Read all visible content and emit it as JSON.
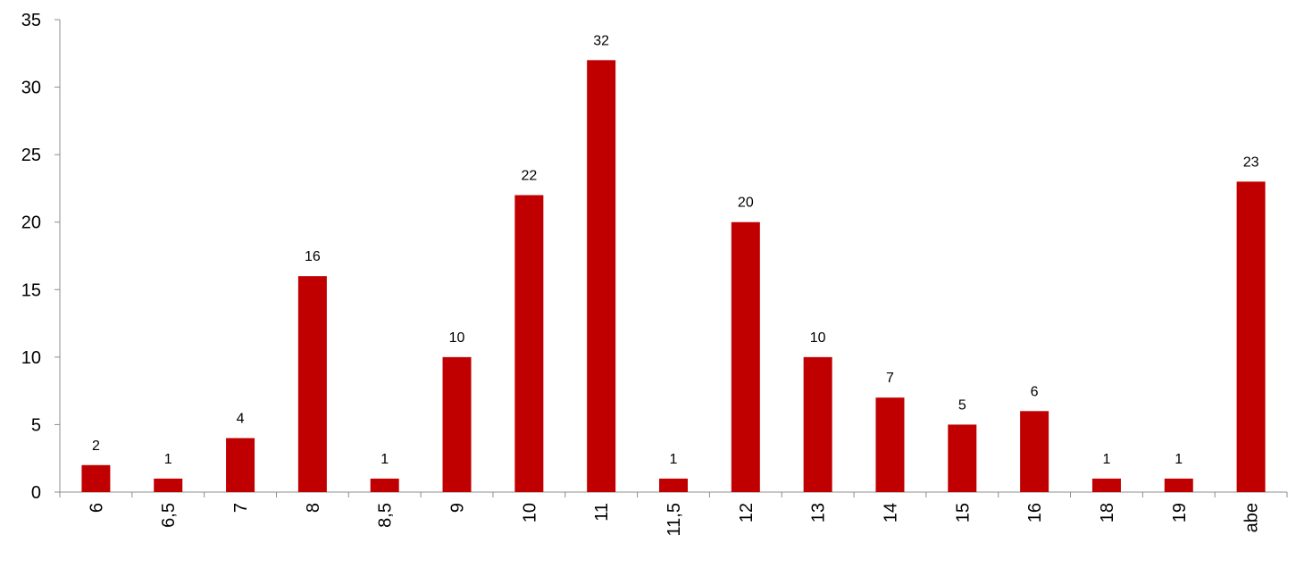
{
  "chart_data": {
    "type": "bar",
    "title": "",
    "xlabel": "",
    "ylabel": "",
    "categories": [
      "6",
      "6,5",
      "7",
      "8",
      "8,5",
      "9",
      "10",
      "11",
      "11,5",
      "12",
      "13",
      "14",
      "15",
      "16",
      "18",
      "19",
      "abe"
    ],
    "values": [
      2,
      1,
      4,
      16,
      1,
      10,
      22,
      32,
      1,
      20,
      10,
      7,
      5,
      6,
      1,
      1,
      23
    ],
    "ylim": [
      0,
      35
    ],
    "yticks": [
      0,
      5,
      10,
      15,
      20,
      25,
      30,
      35
    ],
    "grid": false,
    "legend": "none",
    "bar_color": "#c00000",
    "axis_color": "#8c8c8c"
  }
}
